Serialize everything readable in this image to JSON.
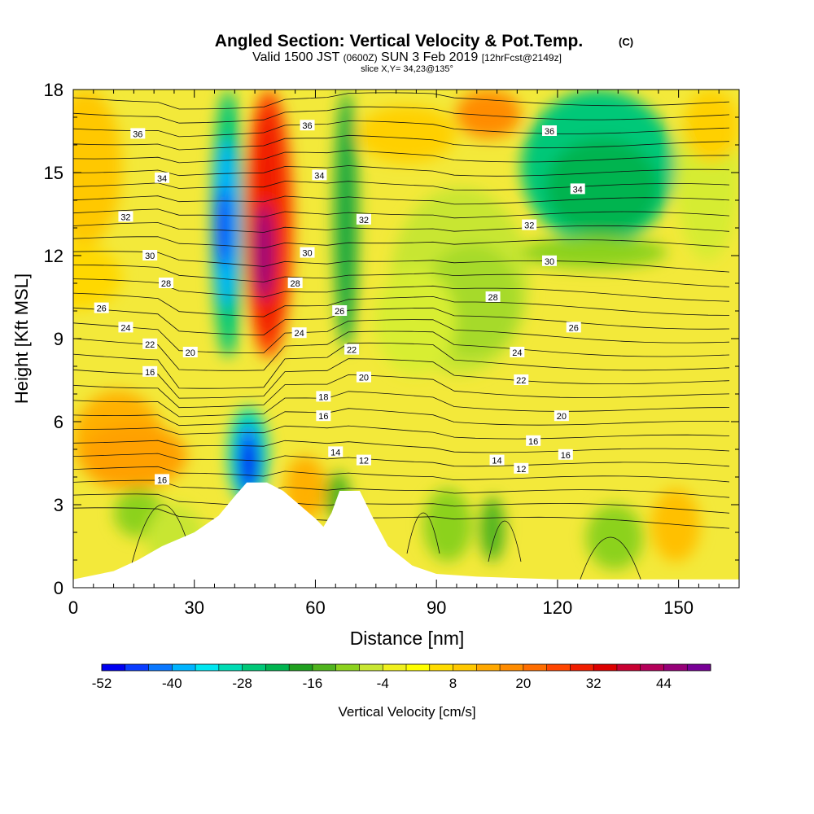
{
  "chart_data": {
    "type": "heatmap",
    "title": "Angled Section: Vertical Velocity & Pot.Temp.",
    "title_mark": "(C)",
    "subtitle": {
      "valid": "Valid 1500 JST",
      "zulu": "(0600Z)",
      "date": "SUN 3 Feb 2019",
      "fcst": "[12hrFcst@2149z]"
    },
    "slice_label": "slice X,Y= 34,23@135°",
    "xlabel": "Distance [nm]",
    "ylabel": "Height [Kft MSL]",
    "xlim": [
      0,
      165
    ],
    "ylim": [
      0,
      18
    ],
    "x_ticks": [
      "0",
      "30",
      "60",
      "90",
      "120",
      "150"
    ],
    "y_ticks": [
      "0",
      "3",
      "6",
      "9",
      "12",
      "15",
      "18"
    ],
    "colorbar": {
      "label": "Vertical Velocity [cm/s]",
      "tick_labels": [
        "-52",
        "-40",
        "-28",
        "-16",
        "-4",
        "8",
        "20",
        "32",
        "44"
      ],
      "colors": [
        "#0000f0",
        "#0a3cff",
        "#0a78ff",
        "#00b4ff",
        "#00e6f0",
        "#00dcb4",
        "#00c878",
        "#00b450",
        "#20a020",
        "#50b41e",
        "#8cd21e",
        "#c8e632",
        "#f0f01e",
        "#ffff00",
        "#ffdc00",
        "#ffc800",
        "#ffa800",
        "#ff8c00",
        "#ff6e00",
        "#ff4600",
        "#f01e00",
        "#dc0000",
        "#c80032",
        "#b4005a",
        "#960078",
        "#780096"
      ]
    },
    "theta_labels": [
      {
        "x": 16,
        "z": 16.4,
        "v": "36"
      },
      {
        "x": 58,
        "z": 16.7,
        "v": "36"
      },
      {
        "x": 118,
        "z": 16.5,
        "v": "36"
      },
      {
        "x": 22,
        "z": 14.8,
        "v": "34"
      },
      {
        "x": 61,
        "z": 14.9,
        "v": "34"
      },
      {
        "x": 125,
        "z": 14.4,
        "v": "34"
      },
      {
        "x": 13,
        "z": 13.4,
        "v": "32"
      },
      {
        "x": 72,
        "z": 13.3,
        "v": "32"
      },
      {
        "x": 113,
        "z": 13.1,
        "v": "32"
      },
      {
        "x": 19,
        "z": 12.0,
        "v": "30"
      },
      {
        "x": 58,
        "z": 12.1,
        "v": "30"
      },
      {
        "x": 118,
        "z": 11.8,
        "v": "30"
      },
      {
        "x": 23,
        "z": 11.0,
        "v": "28"
      },
      {
        "x": 55,
        "z": 11.0,
        "v": "28"
      },
      {
        "x": 104,
        "z": 10.5,
        "v": "28"
      },
      {
        "x": 7,
        "z": 10.1,
        "v": "26"
      },
      {
        "x": 66,
        "z": 10.0,
        "v": "26"
      },
      {
        "x": 124,
        "z": 9.4,
        "v": "26"
      },
      {
        "x": 13,
        "z": 9.4,
        "v": "24"
      },
      {
        "x": 56,
        "z": 9.2,
        "v": "24"
      },
      {
        "x": 110,
        "z": 8.5,
        "v": "24"
      },
      {
        "x": 19,
        "z": 8.8,
        "v": "22"
      },
      {
        "x": 69,
        "z": 8.6,
        "v": "22"
      },
      {
        "x": 111,
        "z": 7.5,
        "v": "22"
      },
      {
        "x": 29,
        "z": 8.5,
        "v": "20"
      },
      {
        "x": 72,
        "z": 7.6,
        "v": "20"
      },
      {
        "x": 121,
        "z": 6.2,
        "v": "20"
      },
      {
        "x": 19,
        "z": 7.8,
        "v": "16"
      },
      {
        "x": 62,
        "z": 6.2,
        "v": "16"
      },
      {
        "x": 114,
        "z": 5.3,
        "v": "16"
      },
      {
        "x": 122,
        "z": 4.8,
        "v": "16"
      },
      {
        "x": 22,
        "z": 3.9,
        "v": "16"
      },
      {
        "x": 62,
        "z": 6.9,
        "v": "18"
      },
      {
        "x": 65,
        "z": 4.9,
        "v": "14"
      },
      {
        "x": 105,
        "z": 4.6,
        "v": "14"
      },
      {
        "x": 72,
        "z": 4.6,
        "v": "12"
      },
      {
        "x": 111,
        "z": 4.3,
        "v": "12"
      }
    ],
    "terrain": [
      [
        0,
        0.3
      ],
      [
        10,
        0.6
      ],
      [
        16,
        1.0
      ],
      [
        22,
        1.5
      ],
      [
        30,
        2.0
      ],
      [
        36,
        2.6
      ],
      [
        40,
        3.3
      ],
      [
        43,
        3.8
      ],
      [
        48,
        3.8
      ],
      [
        52,
        3.5
      ],
      [
        56,
        3.0
      ],
      [
        60,
        2.5
      ],
      [
        62,
        2.2
      ],
      [
        64,
        2.7
      ],
      [
        66,
        3.5
      ],
      [
        71,
        3.5
      ],
      [
        74,
        2.6
      ],
      [
        78,
        1.5
      ],
      [
        84,
        0.8
      ],
      [
        90,
        0.5
      ],
      [
        100,
        0.4
      ],
      [
        120,
        0.3
      ],
      [
        165,
        0.3
      ]
    ]
  }
}
